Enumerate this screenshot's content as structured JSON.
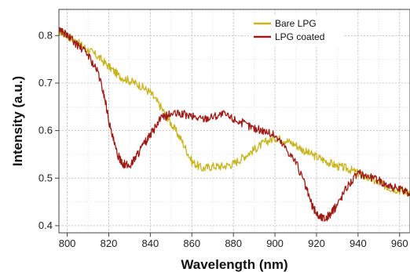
{
  "chart_data": {
    "type": "line",
    "title": "",
    "xlabel": "Wavelength (nm)",
    "ylabel": "Intensity (a.u.)",
    "xlim": [
      796,
      965
    ],
    "ylim": [
      0.385,
      0.855
    ],
    "x_ticks": [
      800,
      820,
      840,
      860,
      880,
      900,
      920,
      940,
      960
    ],
    "x_tick_labels": [
      "800",
      "820",
      "840",
      "860",
      "880",
      "900",
      "920",
      "940",
      "960"
    ],
    "y_ticks": [
      0.4,
      0.5,
      0.6,
      0.7,
      0.8
    ],
    "y_tick_labels": [
      "0.4",
      "0.5",
      "0.6",
      "0.7",
      "0.8"
    ],
    "grid": true,
    "legend_position": "top-right",
    "series": [
      {
        "name": "Bare LPG",
        "color": "#c8b41e",
        "x": [
          796,
          800,
          805,
          810,
          815,
          820,
          825,
          830,
          835,
          840,
          845,
          850,
          855,
          860,
          865,
          870,
          875,
          880,
          885,
          890,
          895,
          900,
          905,
          910,
          915,
          920,
          925,
          930,
          935,
          940,
          945,
          950,
          955,
          960,
          965
        ],
        "y": [
          0.81,
          0.8,
          0.785,
          0.77,
          0.755,
          0.735,
          0.715,
          0.705,
          0.695,
          0.68,
          0.65,
          0.615,
          0.58,
          0.535,
          0.52,
          0.525,
          0.525,
          0.53,
          0.545,
          0.56,
          0.575,
          0.585,
          0.58,
          0.57,
          0.555,
          0.545,
          0.535,
          0.525,
          0.52,
          0.51,
          0.5,
          0.49,
          0.48,
          0.475,
          0.47
        ]
      },
      {
        "name": "LPG coated",
        "color": "#9e1a14",
        "x": [
          796,
          800,
          805,
          810,
          815,
          818,
          821,
          824,
          827,
          830,
          833,
          836,
          840,
          845,
          850,
          855,
          860,
          865,
          870,
          875,
          880,
          885,
          890,
          895,
          900,
          905,
          910,
          915,
          918,
          921,
          924,
          927,
          930,
          935,
          940,
          945,
          950,
          955,
          960,
          965
        ],
        "y": [
          0.815,
          0.8,
          0.78,
          0.76,
          0.72,
          0.67,
          0.6,
          0.55,
          0.53,
          0.525,
          0.545,
          0.565,
          0.59,
          0.625,
          0.635,
          0.635,
          0.63,
          0.625,
          0.63,
          0.635,
          0.625,
          0.615,
          0.605,
          0.6,
          0.59,
          0.565,
          0.535,
          0.48,
          0.44,
          0.42,
          0.415,
          0.425,
          0.445,
          0.485,
          0.51,
          0.505,
          0.495,
          0.485,
          0.475,
          0.47
        ]
      }
    ]
  }
}
